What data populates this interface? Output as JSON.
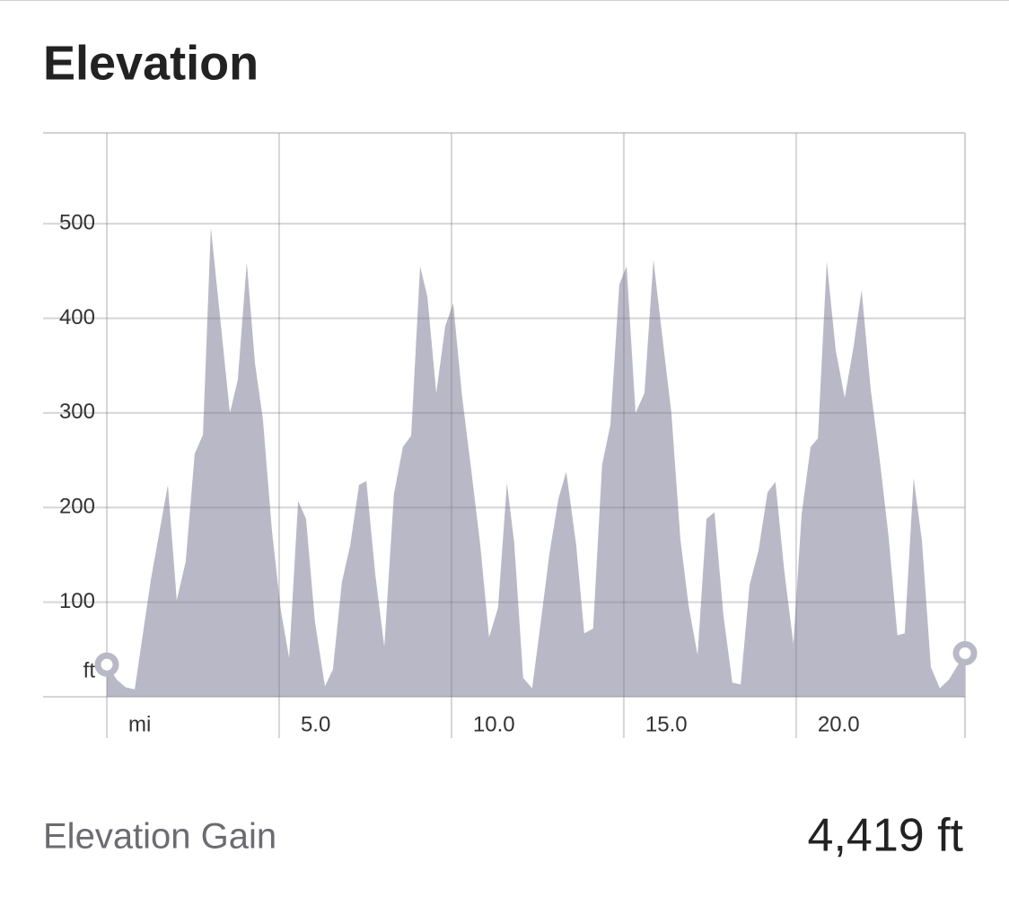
{
  "chart_data": {
    "type": "area",
    "title": "Elevation",
    "x": [
      0,
      0.29,
      0.55,
      0.81,
      1.28,
      1.77,
      2.03,
      2.29,
      2.55,
      2.79,
      3.02,
      3.57,
      3.8,
      4.06,
      4.3,
      4.53,
      4.79,
      5.05,
      5.29,
      5.55,
      5.78,
      6.04,
      6.33,
      6.56,
      6.82,
      7.06,
      7.32,
      7.53,
      7.79,
      8.05,
      8.33,
      8.59,
      8.83,
      9.09,
      9.3,
      9.56,
      9.82,
      10.05,
      10.31,
      10.57,
      10.83,
      11.09,
      11.35,
      11.61,
      11.82,
      12.08,
      12.34,
      12.6,
      12.84,
      13.1,
      13.33,
      13.62,
      13.85,
      14.11,
      14.37,
      14.61,
      14.87,
      15.08,
      15.34,
      15.6,
      15.86,
      16.12,
      16.38,
      16.64,
      16.88,
      17.14,
      17.4,
      17.63,
      17.89,
      18.15,
      18.39,
      18.65,
      18.91,
      19.17,
      19.4,
      19.66,
      19.92,
      20.16,
      20.42,
      20.63,
      20.89,
      21.15,
      21.41,
      21.67,
      21.9,
      22.16,
      22.42,
      22.68,
      22.94,
      23.15,
      23.41,
      23.65,
      23.91,
      24.17,
      24.43,
      24.9
    ],
    "series": [
      {
        "name": "Elevation",
        "color": "#b9b8c6",
        "values": [
          34,
          18,
          10,
          8,
          124,
          224,
          102,
          143,
          257,
          277,
          496,
          300,
          335,
          459,
          352,
          293,
          176,
          91,
          41,
          207,
          188,
          79,
          11,
          29,
          121,
          160,
          224,
          228,
          129,
          53,
          214,
          264,
          276,
          455,
          423,
          321,
          392,
          416,
          317,
          241,
          162,
          63,
          94,
          226,
          163,
          20,
          9,
          82,
          151,
          209,
          238,
          160,
          67,
          72,
          245,
          287,
          436,
          455,
          300,
          321,
          462,
          380,
          300,
          167,
          96,
          44,
          188,
          195,
          86,
          15,
          13,
          118,
          155,
          216,
          227,
          132,
          56,
          193,
          264,
          273,
          460,
          366,
          316,
          371,
          430,
          326,
          252,
          170,
          65,
          67,
          231,
          165,
          31,
          9,
          18,
          46
        ]
      }
    ],
    "xlim": [
      0,
      24.9
    ],
    "xticks": [
      {
        "value": 0,
        "label": "mi"
      },
      {
        "value": 5,
        "label": "5.0"
      },
      {
        "value": 10,
        "label": "10.0"
      },
      {
        "value": 15,
        "label": "15.0"
      },
      {
        "value": 20,
        "label": "20.0"
      }
    ],
    "ylim": [
      0,
      596
    ],
    "yticks": [
      {
        "value": 0,
        "label": "ft"
      },
      100,
      200,
      300,
      400,
      500
    ],
    "grid": true
  },
  "stats": {
    "label": "Elevation Gain",
    "value": "4,419 ft"
  }
}
